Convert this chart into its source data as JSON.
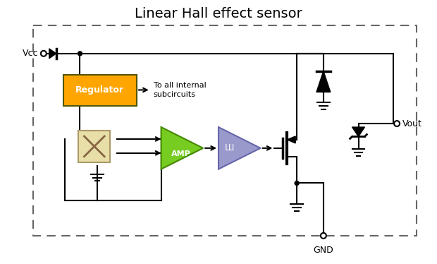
{
  "title": "Linear Hall effect sensor",
  "title_fontsize": 14,
  "bg_color": "#ffffff",
  "border_color": "#666666",
  "regulator_color": "#FFA500",
  "hall_color": "#E8DFA8",
  "amp_color": "#77CC22",
  "schmitt_color": "#9999CC",
  "text_color": "#000000",
  "line_color": "#000000",
  "vcc_label": "Vcc",
  "vout_label": "Vout",
  "gnd_label": "GND",
  "regulator_label": "Regulator",
  "amp_label": "AMP",
  "subcircuits_label": "To all internal\nsubcircuits"
}
